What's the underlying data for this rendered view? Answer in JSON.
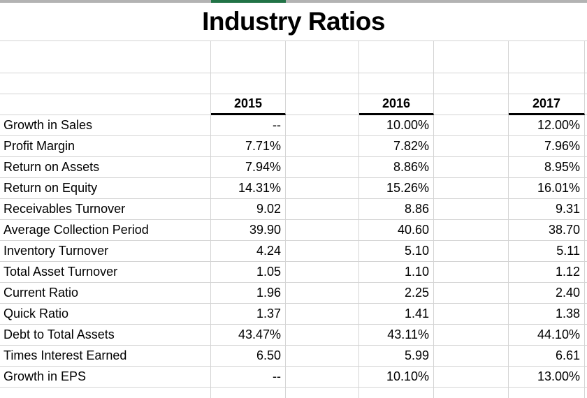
{
  "title": "Industry Ratios",
  "header": {
    "years": [
      "2015",
      "2016",
      "2017"
    ]
  },
  "table": {
    "rows": [
      {
        "label": "Growth in Sales",
        "v2015": "--",
        "v2016": "10.00%",
        "v2017": "12.00%"
      },
      {
        "label": "Profit Margin",
        "v2015": "7.71%",
        "v2016": "7.82%",
        "v2017": "7.96%"
      },
      {
        "label": "Return on Assets",
        "v2015": "7.94%",
        "v2016": "8.86%",
        "v2017": "8.95%"
      },
      {
        "label": "Return on Equity",
        "v2015": "14.31%",
        "v2016": "15.26%",
        "v2017": "16.01%"
      },
      {
        "label": "Receivables Turnover",
        "v2015": "9.02",
        "v2016": "8.86",
        "v2017": "9.31"
      },
      {
        "label": "Average Collection Period",
        "v2015": "39.90",
        "v2016": "40.60",
        "v2017": "38.70"
      },
      {
        "label": "Inventory Turnover",
        "v2015": "4.24",
        "v2016": "5.10",
        "v2017": "5.11"
      },
      {
        "label": "Total Asset Turnover",
        "v2015": "1.05",
        "v2016": "1.10",
        "v2017": "1.12"
      },
      {
        "label": "Current Ratio",
        "v2015": "1.96",
        "v2016": "2.25",
        "v2017": "2.40"
      },
      {
        "label": "Quick Ratio",
        "v2015": "1.37",
        "v2016": "1.41",
        "v2017": "1.38"
      },
      {
        "label": "Debt to Total Assets",
        "v2015": "43.47%",
        "v2016": "43.11%",
        "v2017": "44.10%"
      },
      {
        "label": "Times Interest Earned",
        "v2015": "6.50",
        "v2016": "5.99",
        "v2017": "6.61"
      },
      {
        "label": "Growth in EPS",
        "v2015": "--",
        "v2016": "10.10%",
        "v2017": "13.00%"
      }
    ]
  },
  "colors": {
    "accent_green": "#217346",
    "strip_gray": "#b3b3b3",
    "gridline": "#d4d4d4",
    "header_underline": "#000000"
  }
}
